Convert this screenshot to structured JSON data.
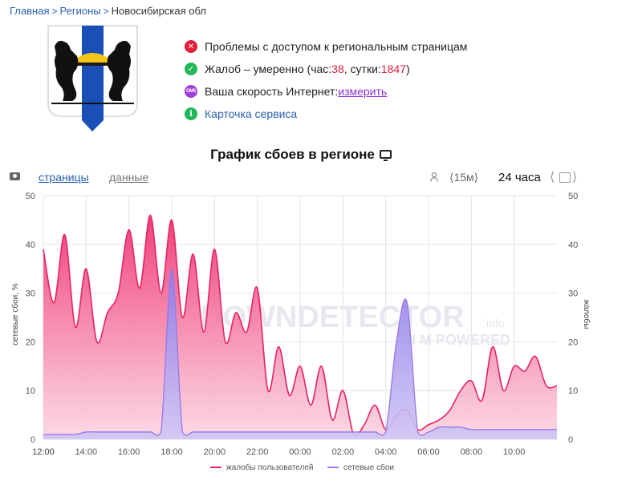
{
  "breadcrumb": {
    "home": "Главная",
    "regions": "Регионы",
    "current": "Новосибирская обл"
  },
  "status": {
    "access_problems": "Проблемы с доступом к региональным страницам",
    "complaints_prefix": "Жалоб – умеренно (час: ",
    "complaints_hour": "38",
    "complaints_mid": ", сутки: ",
    "complaints_day": "1847",
    "complaints_suffix": ")",
    "speed_prefix": "Ваша скорость Интернет: ",
    "speed_link": "измерить",
    "service_card": "Карточка сервиса",
    "speed_icon_text": "OMS"
  },
  "chart_title": "График сбоев в регионе",
  "controls": {
    "tab_pages": "страницы",
    "tab_data": "данные",
    "interval": "⟨15м⟩",
    "period": "24 часа",
    "prev": "⟨",
    "next": "⟩"
  },
  "watermark": {
    "brand": "DOWNDETECTOR",
    "suffix": ".info",
    "sub": "AI M POWERED"
  },
  "colors": {
    "complaints": "#e8245e",
    "outages": "#9b7be8",
    "grid": "#e4e4e4"
  },
  "chart_data": {
    "type": "area",
    "x": [
      "12:00",
      "12:30",
      "13:00",
      "13:30",
      "14:00",
      "14:30",
      "15:00",
      "15:30",
      "16:00",
      "16:30",
      "17:00",
      "17:30",
      "18:00",
      "18:30",
      "19:00",
      "19:30",
      "20:00",
      "20:30",
      "21:00",
      "21:30",
      "22:00",
      "22:30",
      "23:00",
      "23:30",
      "00:00",
      "00:30",
      "01:00",
      "01:30",
      "02:00",
      "02:30",
      "03:00",
      "03:30",
      "04:00",
      "04:30",
      "05:00",
      "05:30",
      "06:00",
      "06:30",
      "07:00",
      "07:30",
      "08:00",
      "08:30",
      "09:00",
      "09:30",
      "10:00",
      "10:30",
      "11:00",
      "11:30",
      "12:00"
    ],
    "x_ticks": [
      "12:00",
      "14:00",
      "16:00",
      "18:00",
      "20:00",
      "22:00",
      "00:00",
      "02:00",
      "04:00",
      "06:00",
      "08:00",
      "10:00",
      "12:00"
    ],
    "ylim": [
      0,
      50
    ],
    "y_ticks": [
      0,
      10,
      20,
      30,
      40,
      50
    ],
    "ylabel_left": "сетевые сбои, %",
    "ylabel_right": "жалобы",
    "series": [
      {
        "name": "жалобы пользователей",
        "values": [
          39,
          28,
          42,
          23,
          35,
          20,
          26,
          30,
          43,
          31,
          46,
          30,
          45,
          25,
          38,
          22,
          39,
          20,
          26,
          22,
          31,
          10,
          19,
          9,
          15,
          7,
          15,
          4,
          10,
          1,
          3,
          7,
          2,
          5,
          6,
          2,
          3,
          4,
          6,
          10,
          12,
          8,
          19,
          10,
          15,
          14,
          17,
          11,
          11
        ]
      },
      {
        "name": "сетевые сбои",
        "values": [
          1,
          1,
          1,
          1,
          1.5,
          1.5,
          1.5,
          1.5,
          1.5,
          1.5,
          1.5,
          1.5,
          35,
          1.5,
          1.5,
          1.5,
          1.5,
          1.5,
          1.5,
          1.5,
          1.5,
          1.5,
          1.5,
          1.5,
          1.5,
          1.5,
          1.5,
          1.5,
          1.5,
          1.5,
          1.5,
          1.5,
          1.5,
          20,
          28,
          1.5,
          1.5,
          2.5,
          2.5,
          2.5,
          2,
          2,
          2,
          2,
          2,
          2,
          2,
          2,
          2
        ]
      }
    ],
    "legend_position": "bottom-center",
    "grid": true
  }
}
